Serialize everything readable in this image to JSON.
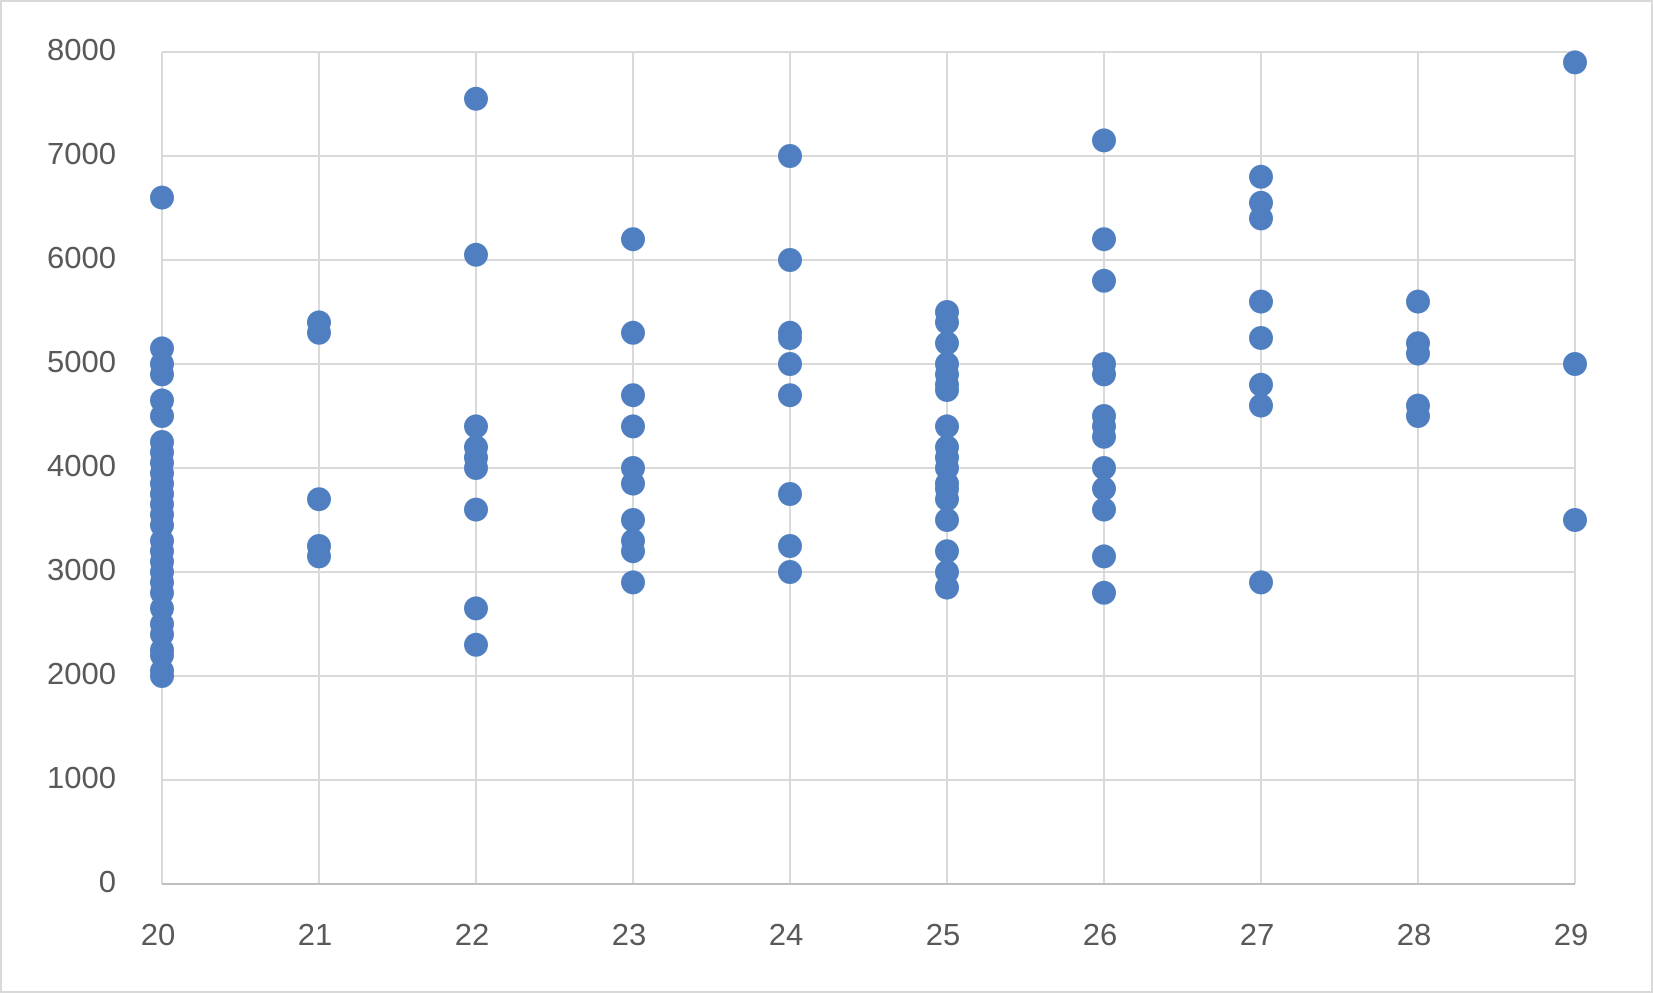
{
  "chart_data": {
    "type": "scatter",
    "x": [
      20,
      20,
      20,
      20,
      20,
      20,
      20,
      20,
      20,
      20,
      20,
      20,
      20,
      20,
      20,
      20,
      20,
      20,
      20,
      20,
      20,
      20,
      20,
      20,
      20,
      20,
      20,
      20,
      21,
      21,
      21,
      21,
      21,
      22,
      22,
      22,
      22,
      22,
      22,
      22,
      22,
      22,
      23,
      23,
      23,
      23,
      23,
      23,
      23,
      23,
      23,
      23,
      24,
      24,
      24,
      24,
      24,
      24,
      24,
      24,
      24,
      25,
      25,
      25,
      25,
      25,
      25,
      25,
      25,
      25,
      25,
      25,
      25,
      25,
      25,
      25,
      25,
      25,
      25,
      26,
      26,
      26,
      26,
      26,
      26,
      26,
      26,
      26,
      26,
      26,
      26,
      26,
      27,
      27,
      27,
      27,
      27,
      27,
      27,
      27,
      28,
      28,
      28,
      28,
      28,
      29,
      29,
      29
    ],
    "values": [
      6600,
      5150,
      5000,
      4900,
      4650,
      4500,
      4250,
      4150,
      4050,
      3950,
      3850,
      3750,
      3650,
      3550,
      3450,
      3300,
      3200,
      3100,
      3000,
      2900,
      2800,
      2650,
      2500,
      2400,
      2250,
      2200,
      2050,
      2000,
      5400,
      5300,
      3700,
      3250,
      3150,
      7550,
      6050,
      4400,
      4200,
      4100,
      4000,
      3600,
      2650,
      2300,
      6200,
      5300,
      4700,
      4400,
      4000,
      3850,
      3500,
      3300,
      3200,
      2900,
      7000,
      6000,
      5300,
      5250,
      5000,
      4700,
      3750,
      3250,
      3000,
      5500,
      5400,
      5200,
      5000,
      4900,
      4800,
      4750,
      4400,
      4200,
      4100,
      4000,
      3850,
      3800,
      3700,
      3500,
      3200,
      3000,
      2850,
      7150,
      6200,
      5800,
      5000,
      4900,
      4500,
      4400,
      4300,
      4000,
      3800,
      3600,
      3150,
      2800,
      6800,
      6550,
      6400,
      5600,
      5250,
      4800,
      4600,
      2900,
      5600,
      5200,
      5100,
      4600,
      4500,
      7900,
      5000,
      3500
    ],
    "color": "#4f7fc0",
    "xlim": [
      20,
      29
    ],
    "xticks": [
      20,
      21,
      22,
      23,
      24,
      25,
      26,
      27,
      28,
      29
    ],
    "ylim": [
      0,
      8000
    ],
    "yticks": [
      0,
      1000,
      2000,
      3000,
      4000,
      5000,
      6000,
      7000,
      8000
    ],
    "grid": true
  }
}
